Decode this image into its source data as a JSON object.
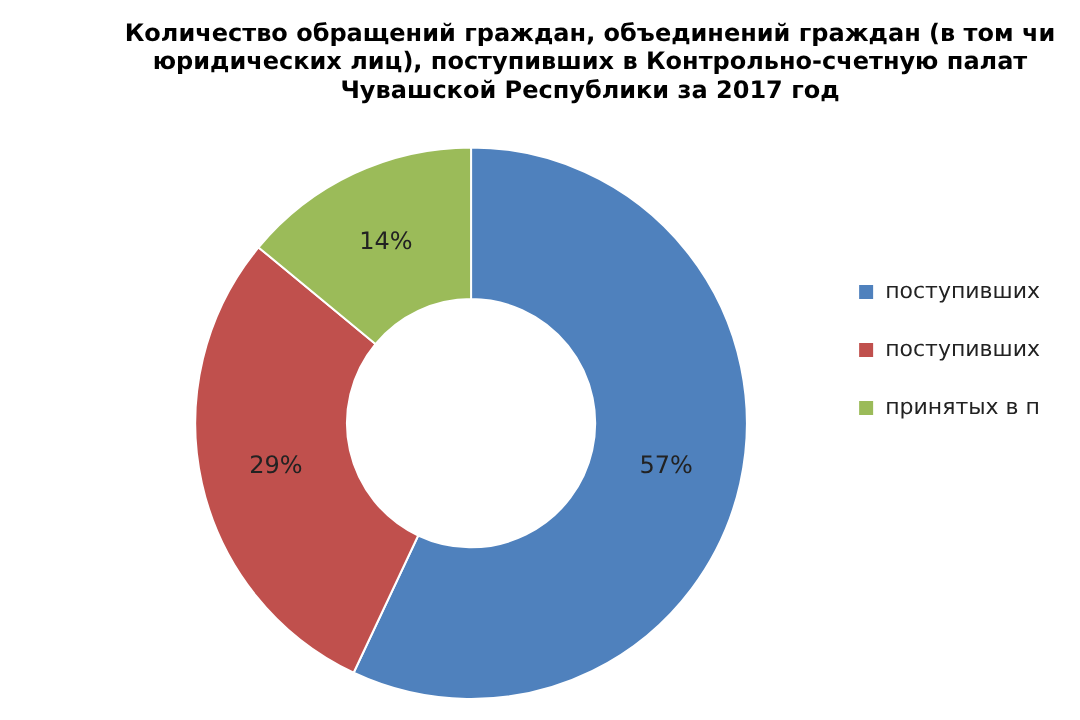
{
  "chart_data": {
    "type": "donut",
    "title": "Количество обращений граждан, объединений граждан (в том чи\nюридических лиц), поступивших в Контрольно-счетную палат\nЧувашской Республики за 2017 год",
    "categories": [
      "поступивших",
      "поступивших",
      "принятых в п"
    ],
    "values": [
      57,
      29,
      14
    ],
    "value_labels": [
      "57%",
      "29%",
      "14%"
    ],
    "colors": [
      "#4f81bd",
      "#c0504d",
      "#9bbb59"
    ],
    "legend": "right"
  }
}
